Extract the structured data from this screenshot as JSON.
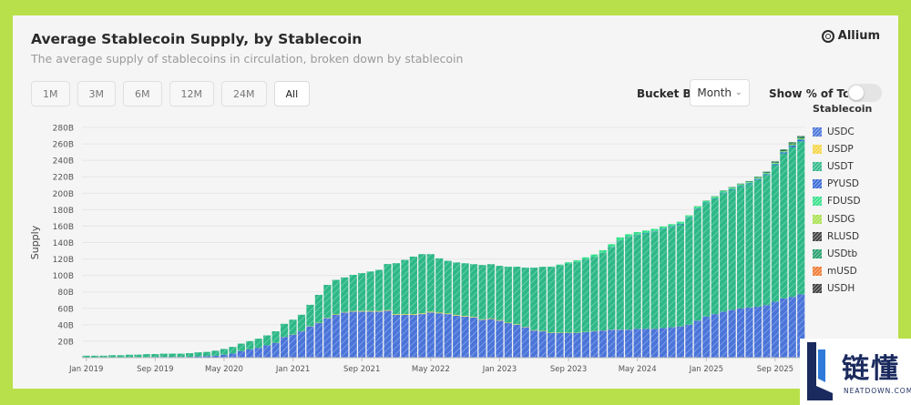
{
  "header": {
    "title": "Average Stablecoin Supply, by Stablecoin",
    "subtitle": "The average supply of stablecoins in circulation, broken down by stablecoin",
    "logo_text": "Allium"
  },
  "timeframes": [
    {
      "label": "1M",
      "active": false
    },
    {
      "label": "3M",
      "active": false
    },
    {
      "label": "6M",
      "active": false
    },
    {
      "label": "12M",
      "active": false
    },
    {
      "label": "24M",
      "active": false
    },
    {
      "label": "All",
      "active": true
    }
  ],
  "controls": {
    "bucket_label": "Bucket By",
    "bucket_value": "Month",
    "toggle_label": "Show % of Total",
    "toggle_on": false
  },
  "watermark": {
    "text_cn": "链懂",
    "url": "NEATDOWN.COM"
  },
  "chart_data": {
    "type": "bar",
    "stacked": true,
    "ylabel": "Supply",
    "yticks": [
      "20B",
      "40B",
      "60B",
      "80B",
      "100B",
      "120B",
      "140B",
      "160B",
      "180B",
      "200B",
      "220B",
      "240B",
      "260B",
      "280B"
    ],
    "ylim": [
      0,
      280
    ],
    "xticks": [
      "Jan 2019",
      "Sep 2019",
      "May 2020",
      "Jan 2021",
      "Sep 2021",
      "May 2022",
      "Jan 2023",
      "Sep 2023",
      "May 2024",
      "Jan 2025",
      "Sep 2025"
    ],
    "legend_title": "Stablecoin",
    "legend": [
      {
        "name": "USDC",
        "color": "#4a74d9"
      },
      {
        "name": "USDP",
        "color": "#f5d442"
      },
      {
        "name": "USDT",
        "color": "#2db887"
      },
      {
        "name": "PYUSD",
        "color": "#3566d6"
      },
      {
        "name": "FDUSD",
        "color": "#33e08a"
      },
      {
        "name": "USDG",
        "color": "#a8e04a"
      },
      {
        "name": "RLUSD",
        "color": "#3d3d3d"
      },
      {
        "name": "USDtb",
        "color": "#1f9e6a"
      },
      {
        "name": "mUSD",
        "color": "#f07830"
      },
      {
        "name": "USDH",
        "color": "#3a3a3a"
      }
    ],
    "categories": [
      "Jan 2019",
      "Feb 2019",
      "Mar 2019",
      "Apr 2019",
      "May 2019",
      "Jun 2019",
      "Jul 2019",
      "Aug 2019",
      "Sep 2019",
      "Oct 2019",
      "Nov 2019",
      "Dec 2019",
      "Jan 2020",
      "Feb 2020",
      "Mar 2020",
      "Apr 2020",
      "May 2020",
      "Jun 2020",
      "Jul 2020",
      "Aug 2020",
      "Sep 2020",
      "Oct 2020",
      "Nov 2020",
      "Dec 2020",
      "Jan 2021",
      "Feb 2021",
      "Mar 2021",
      "Apr 2021",
      "May 2021",
      "Jun 2021",
      "Jul 2021",
      "Aug 2021",
      "Sep 2021",
      "Oct 2021",
      "Nov 2021",
      "Dec 2021",
      "Jan 2022",
      "Feb 2022",
      "Mar 2022",
      "Apr 2022",
      "May 2022",
      "Jun 2022",
      "Jul 2022",
      "Aug 2022",
      "Sep 2022",
      "Oct 2022",
      "Nov 2022",
      "Dec 2022",
      "Jan 2023",
      "Feb 2023",
      "Mar 2023",
      "Apr 2023",
      "May 2023",
      "Jun 2023",
      "Jul 2023",
      "Aug 2023",
      "Sep 2023",
      "Oct 2023",
      "Nov 2023",
      "Dec 2023",
      "Jan 2024",
      "Feb 2024",
      "Mar 2024",
      "Apr 2024",
      "May 2024",
      "Jun 2024",
      "Jul 2024",
      "Aug 2024",
      "Sep 2024",
      "Oct 2024",
      "Nov 2024",
      "Dec 2024",
      "Jan 2025",
      "Feb 2025",
      "Mar 2025",
      "Apr 2025",
      "May 2025",
      "Jun 2025",
      "Jul 2025",
      "Aug 2025",
      "Sep 2025",
      "Oct 2025",
      "Nov 2025",
      "Dec 2025"
    ],
    "series": [
      {
        "name": "USDC",
        "values": [
          0.4,
          0.4,
          0.4,
          0.5,
          0.5,
          0.6,
          0.7,
          0.8,
          0.9,
          0.9,
          0.9,
          0.9,
          1,
          1.5,
          2,
          2.5,
          3.5,
          5,
          8,
          10,
          12,
          15,
          18,
          25,
          28,
          32,
          38,
          42,
          48,
          52,
          55,
          56,
          56,
          56,
          56,
          57,
          52,
          52,
          52,
          53,
          55,
          54,
          53,
          51,
          50,
          49,
          46,
          47,
          45,
          42,
          40,
          37,
          33,
          32,
          30,
          30,
          30,
          30,
          31,
          32,
          33,
          34,
          34,
          34,
          35,
          35,
          35,
          36,
          37,
          38,
          40,
          45,
          50,
          53,
          56,
          58,
          60,
          61,
          62,
          64,
          68,
          72,
          74,
          77
        ]
      },
      {
        "name": "USDP",
        "values": [
          0,
          0,
          0,
          0,
          0,
          0,
          0,
          0,
          0,
          0,
          0,
          0,
          0,
          0,
          0,
          0,
          0.1,
          0.1,
          0.1,
          0.1,
          0.1,
          0.1,
          0.1,
          0.2,
          0.2,
          0.2,
          0.3,
          0.4,
          0.5,
          0.6,
          0.6,
          0.7,
          0.8,
          0.8,
          0.8,
          0.9,
          0.9,
          0.9,
          0.9,
          0.9,
          0.9,
          0.8,
          0.8,
          0.8,
          0.8,
          0.7,
          0.7,
          0.7,
          0.7,
          0.6,
          0.6,
          0.5,
          0.5,
          0.5,
          0.5,
          0.4,
          0.4,
          0.3,
          0.3,
          0.3,
          0.2,
          0.2,
          0.2,
          0.2,
          0.1,
          0.1,
          0.1,
          0.1,
          0.1,
          0.1,
          0.1,
          0.1,
          0.1,
          0.1,
          0.1,
          0.1,
          0.1,
          0.1,
          0.1,
          0.1,
          0.1,
          0.1,
          0.1,
          0.1
        ]
      },
      {
        "name": "USDT",
        "values": [
          2,
          2,
          2,
          2.5,
          2.5,
          3,
          3,
          3.5,
          3.5,
          4,
          4,
          4,
          4.5,
          5,
          5,
          6,
          7,
          8,
          9,
          10,
          11,
          12,
          14,
          16,
          18,
          20,
          26,
          34,
          40,
          42,
          42,
          44,
          46,
          48,
          50,
          56,
          62,
          66,
          70,
          72,
          70,
          66,
          64,
          64,
          64,
          64,
          66,
          66,
          66,
          68,
          70,
          72,
          76,
          78,
          80,
          82,
          84,
          86,
          88,
          90,
          94,
          100,
          108,
          112,
          114,
          116,
          118,
          120,
          122,
          124,
          130,
          136,
          138,
          140,
          144,
          146,
          148,
          150,
          154,
          158,
          166,
          176,
          182,
          186
        ]
      },
      {
        "name": "PYUSD",
        "values": [
          0,
          0,
          0,
          0,
          0,
          0,
          0,
          0,
          0,
          0,
          0,
          0,
          0,
          0,
          0,
          0,
          0,
          0,
          0,
          0,
          0,
          0,
          0,
          0,
          0,
          0,
          0,
          0,
          0,
          0,
          0,
          0,
          0,
          0,
          0,
          0,
          0,
          0,
          0,
          0,
          0,
          0,
          0,
          0,
          0,
          0,
          0,
          0,
          0,
          0,
          0,
          0,
          0,
          0,
          0,
          0,
          0.1,
          0.1,
          0.2,
          0.2,
          0.3,
          0.3,
          0.3,
          0.4,
          0.4,
          0.5,
          0.5,
          0.6,
          0.7,
          0.7,
          0.6,
          0.5,
          0.5,
          0.5,
          0.6,
          0.7,
          0.8,
          0.9,
          1,
          1,
          1.2,
          1.5,
          1.8,
          2
        ]
      },
      {
        "name": "FDUSD",
        "values": [
          0,
          0,
          0,
          0,
          0,
          0,
          0,
          0,
          0,
          0,
          0,
          0,
          0,
          0,
          0,
          0,
          0,
          0,
          0,
          0,
          0,
          0,
          0,
          0,
          0,
          0,
          0,
          0,
          0,
          0,
          0,
          0,
          0,
          0,
          0,
          0,
          0,
          0,
          0,
          0,
          0,
          0,
          0,
          0,
          0,
          0,
          0,
          0,
          0,
          0,
          0,
          0,
          0,
          0,
          0.3,
          0.8,
          1.5,
          2,
          2.5,
          3,
          3.2,
          3.5,
          3.8,
          3.5,
          3.2,
          3,
          3,
          2.8,
          2.6,
          2.5,
          2.4,
          2.2,
          2,
          2,
          1.8,
          1.6,
          1.5,
          1.4,
          1.2,
          1.2,
          1.1,
          1,
          1,
          1
        ]
      },
      {
        "name": "USDG",
        "values": [
          0,
          0,
          0,
          0,
          0,
          0,
          0,
          0,
          0,
          0,
          0,
          0,
          0,
          0,
          0,
          0,
          0,
          0,
          0,
          0,
          0,
          0,
          0,
          0,
          0,
          0,
          0,
          0,
          0,
          0,
          0,
          0,
          0,
          0,
          0,
          0,
          0,
          0,
          0,
          0,
          0,
          0,
          0,
          0,
          0,
          0,
          0,
          0,
          0,
          0,
          0,
          0,
          0,
          0,
          0,
          0,
          0,
          0,
          0,
          0,
          0,
          0,
          0,
          0,
          0,
          0,
          0,
          0,
          0,
          0,
          0.1,
          0.1,
          0.1,
          0.2,
          0.2,
          0.3,
          0.3,
          0.3,
          0.4,
          0.4,
          0.5,
          0.5,
          0.6,
          0.6
        ]
      },
      {
        "name": "RLUSD",
        "values": [
          0,
          0,
          0,
          0,
          0,
          0,
          0,
          0,
          0,
          0,
          0,
          0,
          0,
          0,
          0,
          0,
          0,
          0,
          0,
          0,
          0,
          0,
          0,
          0,
          0,
          0,
          0,
          0,
          0,
          0,
          0,
          0,
          0,
          0,
          0,
          0,
          0,
          0,
          0,
          0,
          0,
          0,
          0,
          0,
          0,
          0,
          0,
          0,
          0,
          0,
          0,
          0,
          0,
          0,
          0,
          0,
          0,
          0,
          0,
          0,
          0,
          0,
          0,
          0,
          0,
          0,
          0,
          0,
          0,
          0,
          0,
          0.1,
          0.1,
          0.1,
          0.2,
          0.2,
          0.3,
          0.3,
          0.4,
          0.5,
          0.6,
          0.7,
          0.8,
          0.9
        ]
      },
      {
        "name": "USDtb",
        "values": [
          0,
          0,
          0,
          0,
          0,
          0,
          0,
          0,
          0,
          0,
          0,
          0,
          0,
          0,
          0,
          0,
          0,
          0,
          0,
          0,
          0,
          0,
          0,
          0,
          0,
          0,
          0,
          0,
          0,
          0,
          0,
          0,
          0,
          0,
          0,
          0,
          0,
          0,
          0,
          0,
          0,
          0,
          0,
          0,
          0,
          0,
          0,
          0,
          0,
          0,
          0,
          0,
          0,
          0,
          0,
          0,
          0,
          0,
          0,
          0,
          0,
          0,
          0,
          0,
          0,
          0,
          0,
          0,
          0,
          0,
          0,
          0.2,
          0.3,
          0.4,
          0.5,
          0.6,
          0.7,
          0.8,
          0.9,
          1,
          1.2,
          1.4,
          1.5,
          1.6
        ]
      },
      {
        "name": "mUSD",
        "values": [
          0,
          0,
          0,
          0,
          0,
          0,
          0,
          0,
          0,
          0,
          0,
          0,
          0,
          0,
          0,
          0,
          0,
          0,
          0,
          0,
          0,
          0,
          0,
          0,
          0,
          0,
          0,
          0,
          0,
          0,
          0,
          0,
          0,
          0,
          0,
          0,
          0,
          0,
          0,
          0,
          0,
          0,
          0,
          0,
          0,
          0,
          0,
          0,
          0,
          0,
          0,
          0,
          0,
          0,
          0,
          0,
          0,
          0,
          0,
          0,
          0,
          0,
          0,
          0,
          0,
          0,
          0,
          0,
          0,
          0,
          0,
          0,
          0,
          0,
          0,
          0,
          0,
          0,
          0,
          0,
          0.1,
          0.1,
          0.2,
          0.2
        ]
      },
      {
        "name": "USDH",
        "values": [
          0,
          0,
          0,
          0,
          0,
          0,
          0,
          0,
          0,
          0,
          0,
          0,
          0,
          0,
          0,
          0,
          0,
          0,
          0,
          0,
          0,
          0,
          0,
          0,
          0,
          0,
          0,
          0,
          0,
          0,
          0,
          0,
          0,
          0,
          0,
          0,
          0,
          0,
          0,
          0,
          0,
          0,
          0,
          0,
          0,
          0,
          0,
          0,
          0,
          0,
          0,
          0,
          0,
          0,
          0,
          0,
          0,
          0,
          0,
          0,
          0,
          0,
          0,
          0,
          0,
          0,
          0,
          0,
          0,
          0,
          0,
          0,
          0,
          0,
          0,
          0,
          0,
          0,
          0,
          0,
          0,
          0.1,
          0.2,
          0.3
        ]
      }
    ]
  }
}
